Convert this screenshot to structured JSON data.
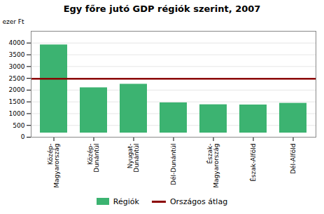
{
  "chart_data": {
    "type": "bar",
    "title": "Egy főre jutó GDP régiók szerint, 2007",
    "ylabel": "ezer Ft",
    "categories": [
      "Közép-\nMagyarország",
      "Közép-\nDunántúl",
      "Nyugat-\nDunántúl",
      "Dél-Dunántúl",
      "Észak-\nMagyarország",
      "Észak-Alföld",
      "Dél-Alföld"
    ],
    "series": [
      {
        "name": "Régiók",
        "color": "#3cb371",
        "values": [
          4100,
          2280,
          2430,
          1640,
          1560,
          1550,
          1620
        ]
      }
    ],
    "reference_lines": [
      {
        "name": "Országos átlag",
        "value": 2480,
        "color": "#8b0000"
      }
    ],
    "ylim": [
      0,
      4500
    ],
    "yticks": [
      0,
      500,
      1000,
      1500,
      2000,
      2500,
      3000,
      3500,
      4000
    ],
    "grid": true,
    "legend": "bottom"
  }
}
